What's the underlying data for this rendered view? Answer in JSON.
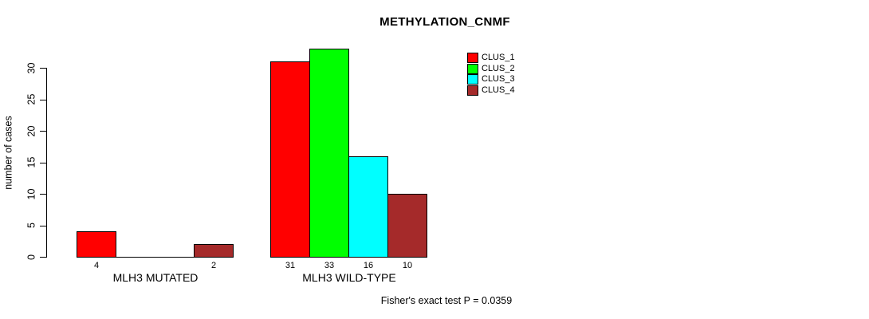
{
  "chart_data": {
    "type": "bar",
    "title": "METHYLATION_CNMF",
    "ylabel": "number of cases",
    "xlabel": "",
    "categories": [
      "MLH3 MUTATED",
      "MLH3 WILD-TYPE"
    ],
    "series": [
      {
        "name": "CLUS_1",
        "color": "#ff0000",
        "values": [
          4,
          31
        ]
      },
      {
        "name": "CLUS_2",
        "color": "#00ff00",
        "values": [
          0,
          33
        ]
      },
      {
        "name": "CLUS_3",
        "color": "#00ffff",
        "values": [
          0,
          16
        ]
      },
      {
        "name": "CLUS_4",
        "color": "#a52a2a",
        "values": [
          2,
          10
        ]
      }
    ],
    "bar_count_labels": [
      [
        "4",
        "",
        "",
        "2"
      ],
      [
        "31",
        "33",
        "16",
        "10"
      ]
    ],
    "yticks": [
      0,
      5,
      10,
      15,
      20,
      25,
      30
    ],
    "ylim": [
      0,
      33
    ],
    "grid": false,
    "legend_position": "top-right",
    "annotation": "Fisher's exact test P = 0.0359",
    "colors": {
      "background": "#ffffff",
      "axis": "#000000",
      "text": "#000000"
    }
  }
}
